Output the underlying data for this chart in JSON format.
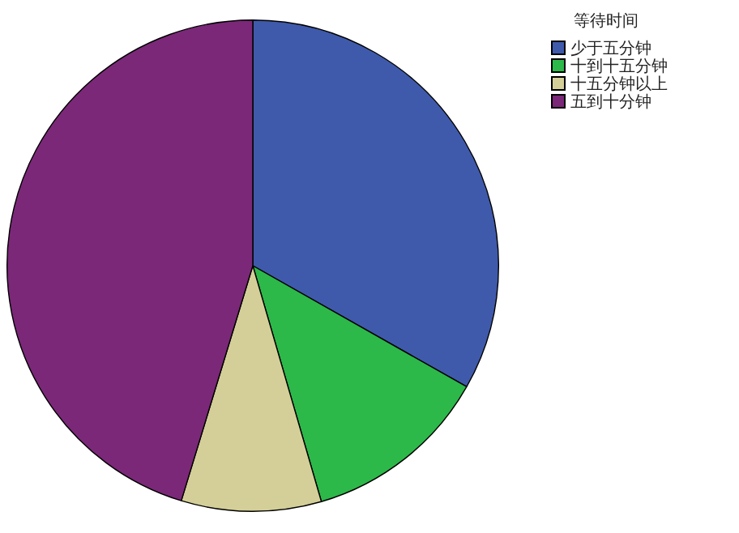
{
  "chart_data": {
    "type": "pie",
    "legend_title": "等待时间",
    "legend": "top right",
    "categories": [
      "少于五分钟",
      "十到十五分钟",
      "十五分钟以上",
      "五到十分钟"
    ],
    "values": [
      33.2,
      12.3,
      9.2,
      45.3
    ],
    "colors": [
      "#3f5aab",
      "#2db84a",
      "#d4cf98",
      "#7b2878"
    ]
  }
}
